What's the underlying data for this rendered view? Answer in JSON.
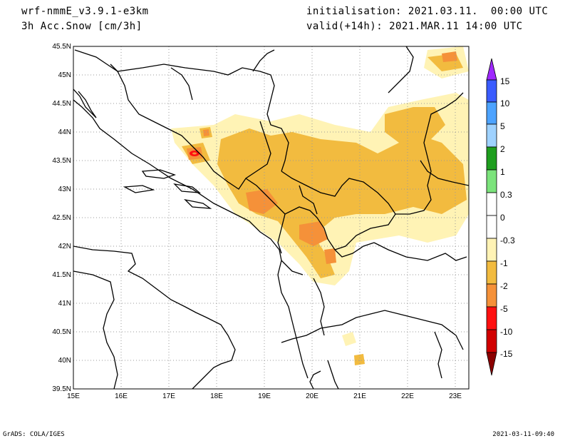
{
  "header": {
    "model": "wrf-nmmE_v3.9.1-e3km",
    "field": "3h Acc.Snow [cm/3h]",
    "init": "initialisation: 2021.03.11.  00:00 UTC",
    "valid": "valid(+14h): 2021.MAR.11 14:00 UTC"
  },
  "axes": {
    "lat_labels": [
      "45.5N",
      "45N",
      "44.5N",
      "44N",
      "43.5N",
      "43N",
      "42.5N",
      "42N",
      "41.5N",
      "41N",
      "40.5N",
      "40N",
      "39.5N"
    ],
    "lon_labels": [
      "15E",
      "16E",
      "17E",
      "18E",
      "19E",
      "20E",
      "21E",
      "22E",
      "23E"
    ],
    "lat_range": [
      39.5,
      45.5
    ],
    "lon_range": [
      15,
      23.25
    ],
    "grid": "dotted"
  },
  "colorbar": {
    "labels": [
      "15",
      "10",
      "5",
      "2",
      "1",
      "0.3",
      "0",
      "-0.3",
      "-1",
      "-2",
      "-5",
      "-10",
      "-15"
    ],
    "colors": [
      "#9f28ff",
      "#3a5cff",
      "#4da3ff",
      "#9fd2ff",
      "#1e9e1e",
      "#7be37b",
      "#ffffff",
      "#ffffff",
      "#fff3b5",
      "#f2bb3f",
      "#f59139",
      "#ff1010",
      "#d10000",
      "#8b0000"
    ]
  },
  "footer": {
    "left": "GrADS: COLA/IGES",
    "right": "2021-03-11-09:40"
  }
}
